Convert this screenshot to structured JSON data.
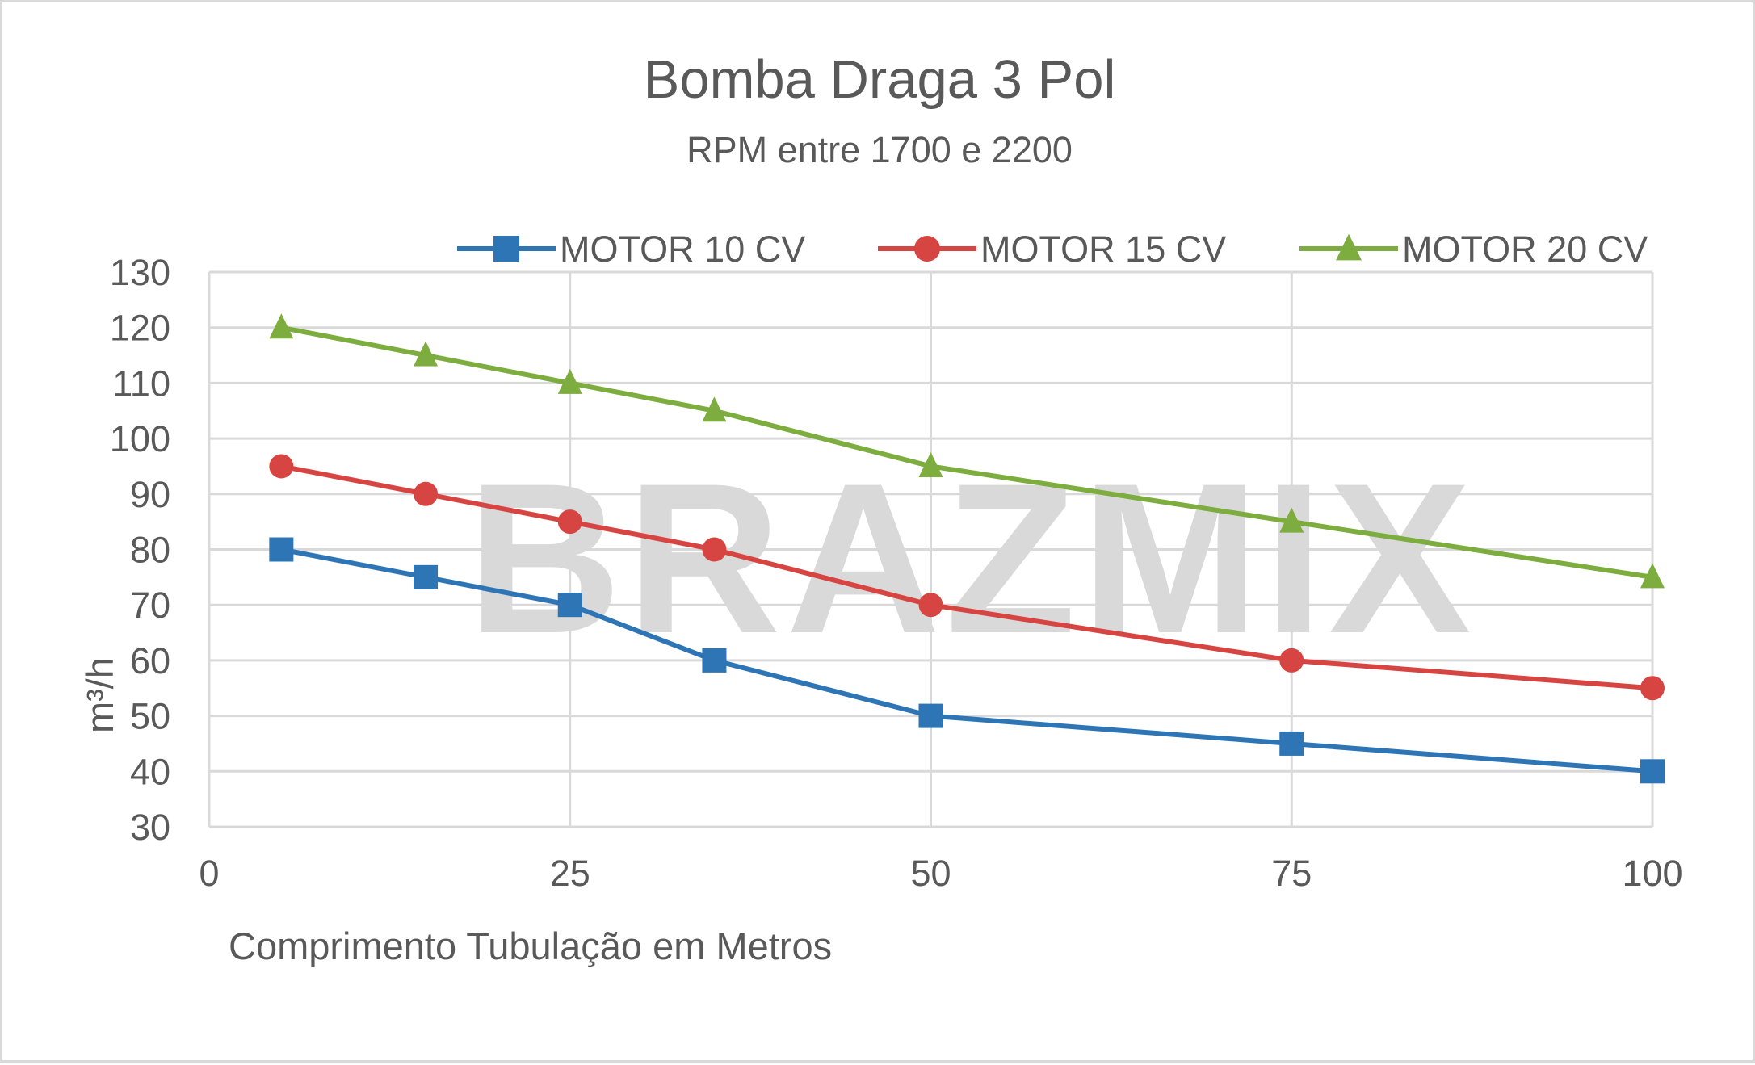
{
  "chart_data": {
    "type": "line",
    "title": "Bomba Draga 3 Pol",
    "subtitle": "RPM entre 1700 e 2200",
    "xlabel": "Comprimento Tubulação em Metros",
    "ylabel": "m³/h",
    "xlim": [
      0,
      100
    ],
    "ylim": [
      30,
      130
    ],
    "x_ticks": [
      0,
      25,
      50,
      75,
      100
    ],
    "y_ticks": [
      30,
      40,
      50,
      60,
      70,
      80,
      90,
      100,
      110,
      120,
      130
    ],
    "grid": true,
    "legend_position": "top",
    "watermark": "BRAZMIX",
    "series": [
      {
        "name": "MOTOR 10 CV",
        "color": "#2e75b6",
        "marker": "square",
        "x": [
          5,
          15,
          25,
          35,
          50,
          75,
          100
        ],
        "values": [
          80,
          75,
          70,
          60,
          50,
          45,
          40
        ]
      },
      {
        "name": "MOTOR 15 CV",
        "color": "#d64541",
        "marker": "circle",
        "x": [
          5,
          15,
          25,
          35,
          50,
          75,
          100
        ],
        "values": [
          95,
          90,
          85,
          80,
          70,
          60,
          55
        ]
      },
      {
        "name": "MOTOR 20 CV",
        "color": "#7cad3e",
        "marker": "triangle",
        "x": [
          5,
          15,
          25,
          35,
          50,
          75,
          100
        ],
        "values": [
          120,
          115,
          110,
          105,
          95,
          85,
          75
        ]
      }
    ]
  }
}
